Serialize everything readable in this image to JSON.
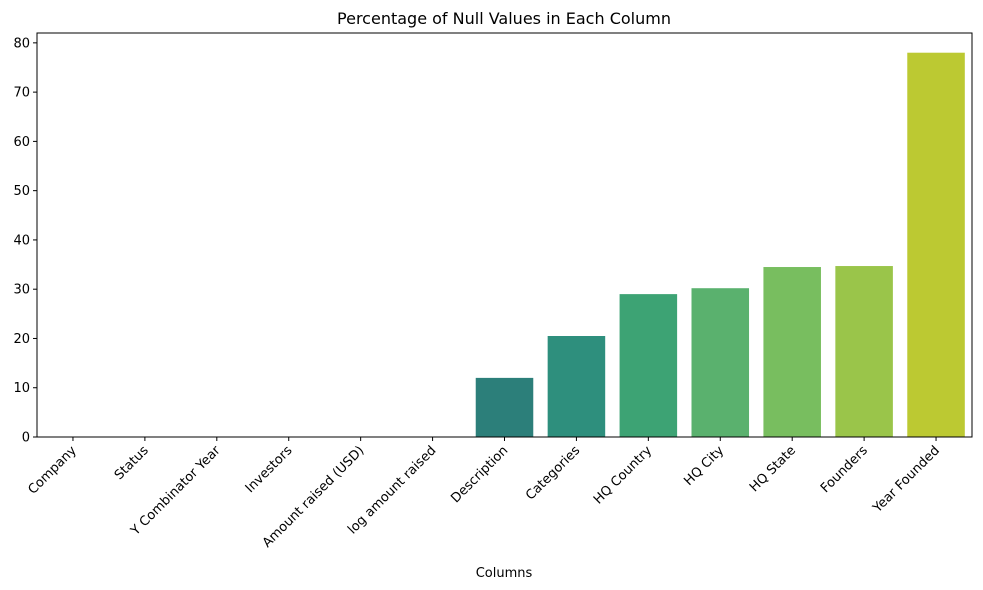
{
  "chart_data": {
    "type": "bar",
    "title": "Percentage of Null Values in Each Column",
    "xlabel": "Columns",
    "ylabel": "",
    "ylim": [
      0,
      82
    ],
    "yticks": [
      0,
      10,
      20,
      30,
      40,
      50,
      60,
      70,
      80
    ],
    "grid": false,
    "categories": [
      "Company",
      "Status",
      "Y Combinator Year",
      "Investors",
      "Amount raised (USD)",
      "log amount raised",
      "Description",
      "Categories",
      "HQ Country",
      "HQ City",
      "HQ State",
      "Founders",
      "Year Founded"
    ],
    "values": [
      0,
      0,
      0,
      0,
      0,
      0,
      12.0,
      20.5,
      29.0,
      30.2,
      34.5,
      34.7,
      78.0
    ],
    "colors": [
      "#440154",
      "#482475",
      "#414487",
      "#355f8d",
      "#2a788e",
      "#21918c",
      "#2c7f7a",
      "#2e8f7d",
      "#3da374",
      "#5ab16e",
      "#78be5f",
      "#9ac54a",
      "#bcc932"
    ]
  }
}
